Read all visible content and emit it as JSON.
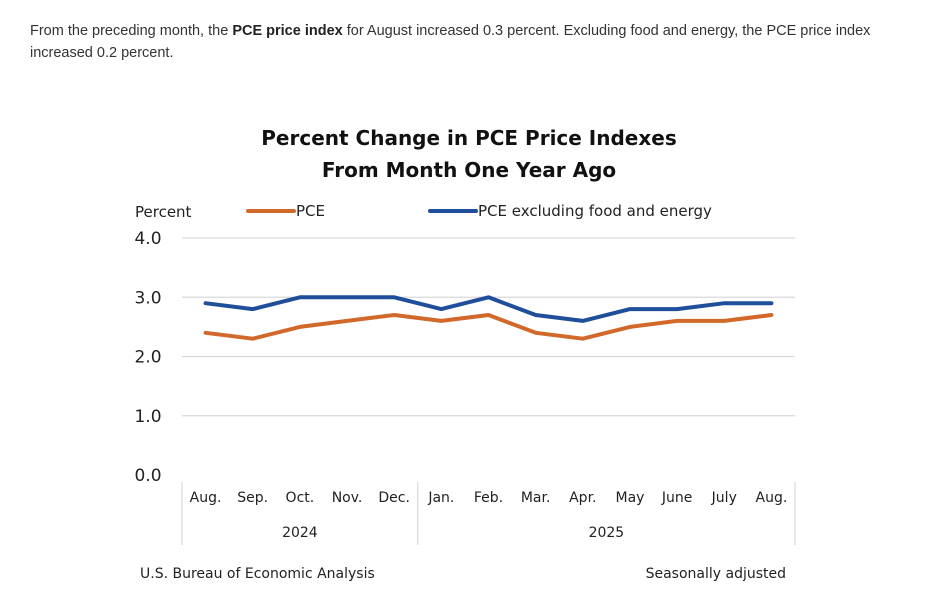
{
  "intro": {
    "text_before": "From the preceding month, the ",
    "bold": "PCE price index",
    "text_after": " for August increased 0.3 percent. Excluding food and energy, the PCE price index increased 0.2 percent."
  },
  "chart_data": {
    "type": "line",
    "title_line1": "Percent Change in PCE Price Indexes",
    "title_line2": "From Month One Year Ago",
    "ylabel": "Percent",
    "ylim": [
      0,
      4
    ],
    "yticks": [
      "0.0",
      "1.0",
      "2.0",
      "3.0",
      "4.0"
    ],
    "categories": [
      "Aug.",
      "Sep.",
      "Oct.",
      "Nov.",
      "Dec.",
      "Jan.",
      "Feb.",
      "Mar.",
      "Apr.",
      "May",
      "June",
      "July",
      "Aug."
    ],
    "year_groups": [
      {
        "label": "2024",
        "count": 5
      },
      {
        "label": "2025",
        "count": 8
      }
    ],
    "series": [
      {
        "name": "PCE",
        "color": "#d2692a",
        "values": [
          2.4,
          2.3,
          2.5,
          2.6,
          2.7,
          2.6,
          2.7,
          2.4,
          2.3,
          2.5,
          2.6,
          2.6,
          2.7
        ]
      },
      {
        "name": "PCE excluding food and energy",
        "color": "#1f4e9a",
        "values": [
          2.9,
          2.8,
          3.0,
          3.0,
          3.0,
          2.8,
          3.0,
          2.7,
          2.6,
          2.8,
          2.8,
          2.9,
          2.9
        ]
      }
    ],
    "grid": true,
    "legend_position": "top",
    "source": "U.S. Bureau of Economic Analysis",
    "note": "Seasonally adjusted"
  }
}
